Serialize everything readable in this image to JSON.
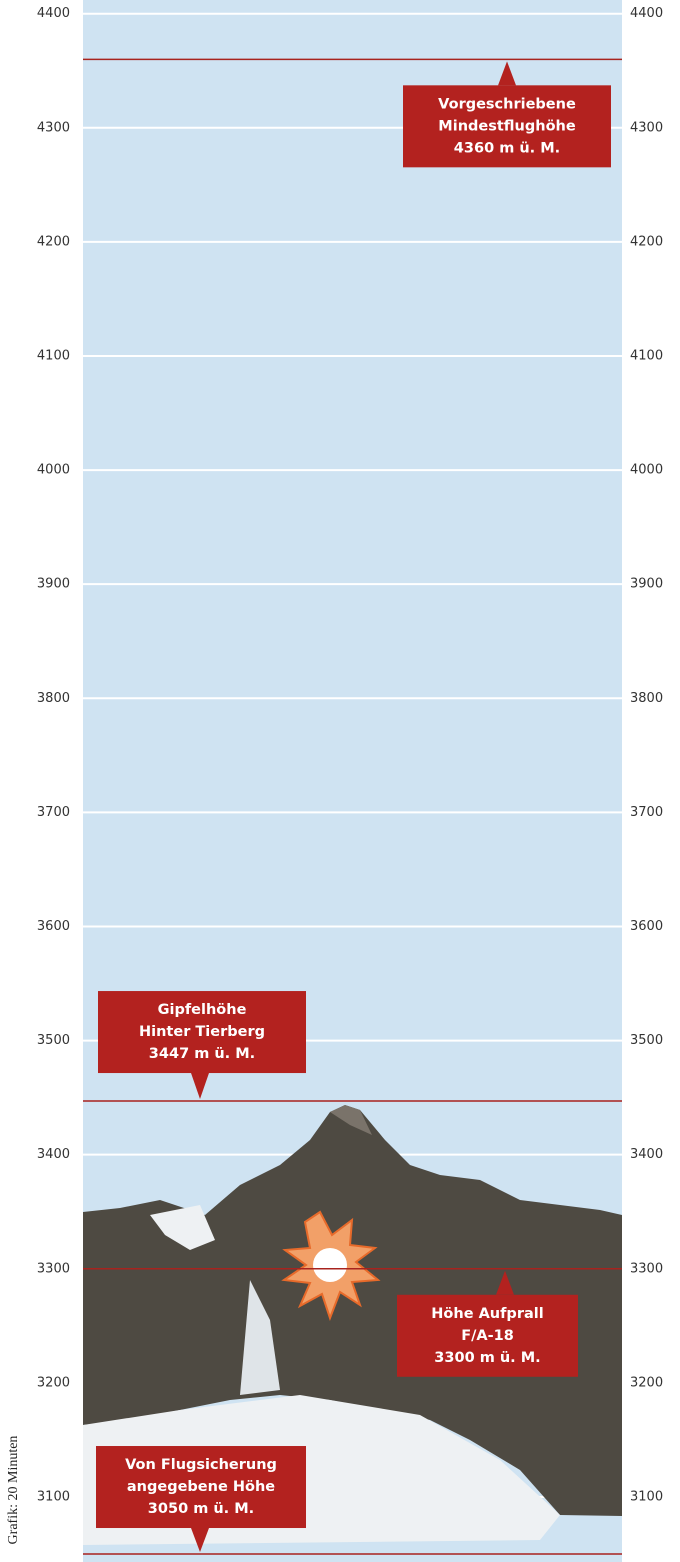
{
  "chart_data": {
    "type": "reference-lines",
    "ylim": [
      3043,
      4412
    ],
    "yticks": [
      3100,
      3200,
      3300,
      3400,
      3500,
      3600,
      3700,
      3800,
      3900,
      4000,
      4100,
      4200,
      4300,
      4400
    ],
    "grid": true,
    "background": "#cfe3f2",
    "line_color": "#a8231e",
    "box_color": "#b3221f",
    "annotations": [
      {
        "value": 4360,
        "lines": [
          "Vorgeschriebene",
          "Mindestflughöhe",
          "4360 m ü. M."
        ]
      },
      {
        "value": 3447,
        "lines": [
          "Gipfelhöhe",
          "Hinter Tierberg",
          "3447 m ü. M."
        ]
      },
      {
        "value": 3300,
        "lines": [
          "Höhe Aufprall",
          "F/A-18",
          "3300 m ü. M."
        ]
      },
      {
        "value": 3050,
        "lines": [
          "Von Flugsicherung",
          "angegebene Höhe",
          "3050 m ü. M."
        ]
      }
    ],
    "credit": "Grafik: 20 Minuten"
  }
}
